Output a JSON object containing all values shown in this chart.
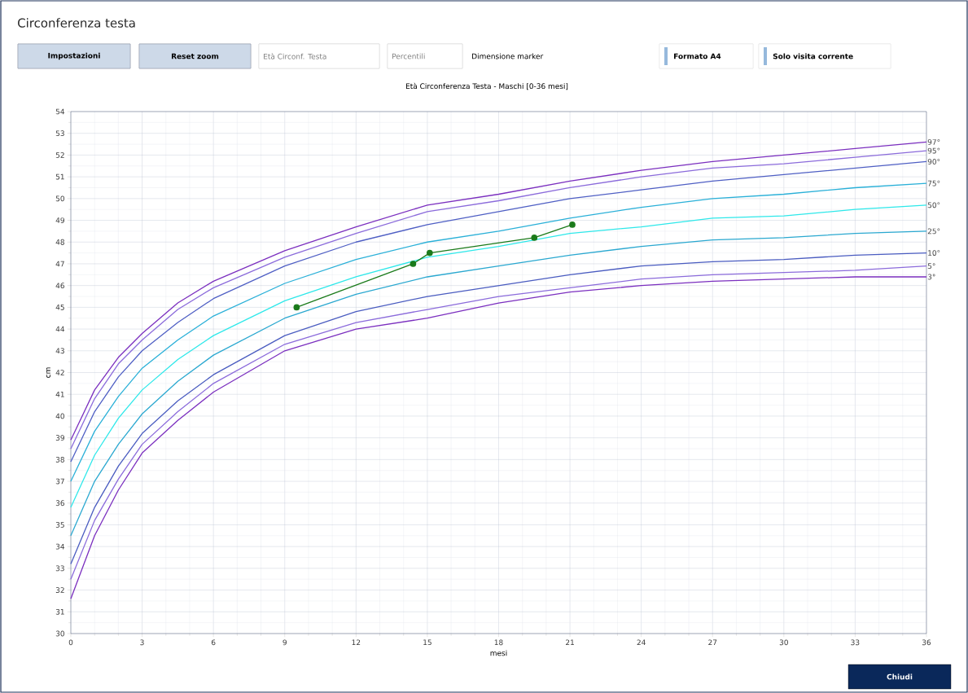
{
  "chart_data": {
    "type": "line",
    "title": "Circonferenza testa",
    "subtitle": "Età Circonferenza Testa - Maschi [0-36 mesi]",
    "xlabel": "mesi",
    "ylabel": "cm",
    "annotations": [
      "Impostazioni",
      "Reset zoom",
      "Età Circonf. Testa",
      "Percentili",
      "Dimensione marker",
      "Formato A4",
      "Solo visita corrente",
      "Chiudi"
    ],
    "x": [
      0,
      1,
      2,
      3,
      4.5,
      6,
      9,
      12,
      15,
      18,
      21,
      24,
      27,
      30,
      33,
      36
    ],
    "series": [
      {
        "name": "97°",
        "color": "#7b2fbf",
        "values": [
          38.9,
          41.2,
          42.7,
          43.8,
          45.2,
          46.2,
          47.6,
          48.7,
          49.7,
          50.2,
          50.8,
          51.3,
          51.7,
          52.0,
          52.3,
          52.6
        ]
      },
      {
        "name": "95°",
        "color": "#8b6bdb",
        "values": [
          38.5,
          40.8,
          42.4,
          43.5,
          44.9,
          45.9,
          47.3,
          48.4,
          49.4,
          49.9,
          50.5,
          51.0,
          51.4,
          51.6,
          51.9,
          52.2
        ]
      },
      {
        "name": "90°",
        "color": "#4f5fc4",
        "values": [
          37.9,
          40.2,
          41.8,
          43.0,
          44.3,
          45.4,
          46.9,
          48.0,
          48.8,
          49.4,
          50.0,
          50.4,
          50.8,
          51.1,
          51.4,
          51.7
        ]
      },
      {
        "name": "75°",
        "color": "#2ab0d8",
        "values": [
          37.0,
          39.3,
          40.9,
          42.2,
          43.5,
          44.6,
          46.1,
          47.2,
          48.0,
          48.5,
          49.1,
          49.6,
          50.0,
          50.2,
          50.5,
          50.7
        ]
      },
      {
        "name": "50°",
        "color": "#2ee8ea",
        "values": [
          35.8,
          38.2,
          39.9,
          41.2,
          42.6,
          43.7,
          45.3,
          46.4,
          47.3,
          47.8,
          48.4,
          48.7,
          49.1,
          49.2,
          49.5,
          49.7
        ]
      },
      {
        "name": "25°",
        "color": "#2aa8d0",
        "values": [
          34.5,
          37.0,
          38.7,
          40.1,
          41.6,
          42.8,
          44.5,
          45.6,
          46.4,
          46.9,
          47.4,
          47.8,
          48.1,
          48.2,
          48.4,
          48.5
        ]
      },
      {
        "name": "10°",
        "color": "#4a5cc0",
        "values": [
          33.2,
          35.8,
          37.7,
          39.2,
          40.7,
          41.9,
          43.7,
          44.8,
          45.5,
          46.0,
          46.5,
          46.9,
          47.1,
          47.2,
          47.4,
          47.5
        ]
      },
      {
        "name": "5°",
        "color": "#8b6bdb",
        "values": [
          32.5,
          35.2,
          37.1,
          38.7,
          40.2,
          41.5,
          43.3,
          44.3,
          44.9,
          45.5,
          45.9,
          46.3,
          46.5,
          46.6,
          46.7,
          46.9
        ]
      },
      {
        "name": "3°",
        "color": "#7b2fbf",
        "values": [
          31.6,
          34.5,
          36.6,
          38.3,
          39.8,
          41.1,
          43.0,
          44.0,
          44.5,
          45.2,
          45.7,
          46.0,
          46.2,
          46.3,
          46.4,
          46.4
        ]
      },
      {
        "color": "#1a7a1a",
        "marker": "circle",
        "x": [
          9.5,
          14.4,
          15.1,
          19.5,
          21.1
        ],
        "values": [
          45.0,
          47.0,
          47.5,
          48.2,
          48.8
        ]
      }
    ],
    "xlim": [
      0,
      36
    ],
    "ylim": [
      30,
      54
    ],
    "xticks": [
      0,
      3,
      6,
      9,
      12,
      15,
      18,
      21,
      24,
      27,
      30,
      33,
      36
    ],
    "yticks": [
      30,
      31,
      32,
      33,
      34,
      35,
      36,
      37,
      38,
      39,
      40,
      41,
      42,
      43,
      44,
      45,
      46,
      47,
      48,
      49,
      50,
      51,
      52,
      53,
      54
    ],
    "grid": true,
    "legend": false,
    "marker": "none",
    "line_style": "solid"
  }
}
